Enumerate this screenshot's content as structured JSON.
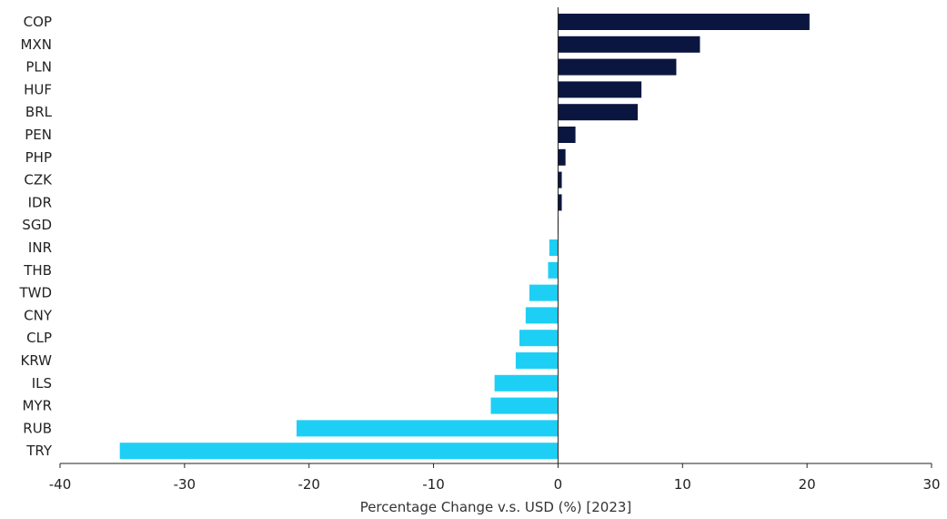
{
  "chart_data": {
    "type": "bar",
    "orientation": "horizontal",
    "title": "",
    "xlabel": "Percentage Change v.s. USD (%) [2023]",
    "ylabel": "",
    "xlim": [
      -40,
      30
    ],
    "xticks": [
      -40,
      -30,
      -20,
      -10,
      0,
      10,
      20,
      30
    ],
    "grid": false,
    "legend": "none",
    "categories": [
      "COP",
      "MXN",
      "PLN",
      "HUF",
      "BRL",
      "PEN",
      "PHP",
      "CZK",
      "IDR",
      "SGD",
      "INR",
      "THB",
      "TWD",
      "CNY",
      "CLP",
      "KRW",
      "ILS",
      "MYR",
      "RUB",
      "TRY"
    ],
    "values": [
      20.2,
      11.4,
      9.5,
      6.7,
      6.4,
      1.4,
      0.6,
      0.3,
      0.3,
      0.0,
      -0.7,
      -0.8,
      -2.3,
      -2.6,
      -3.1,
      -3.4,
      -5.1,
      -5.4,
      -21.0,
      -35.2
    ],
    "colors": {
      "positive": "#0b1640",
      "negative": "#1ecff5",
      "axis": "#222222"
    }
  }
}
